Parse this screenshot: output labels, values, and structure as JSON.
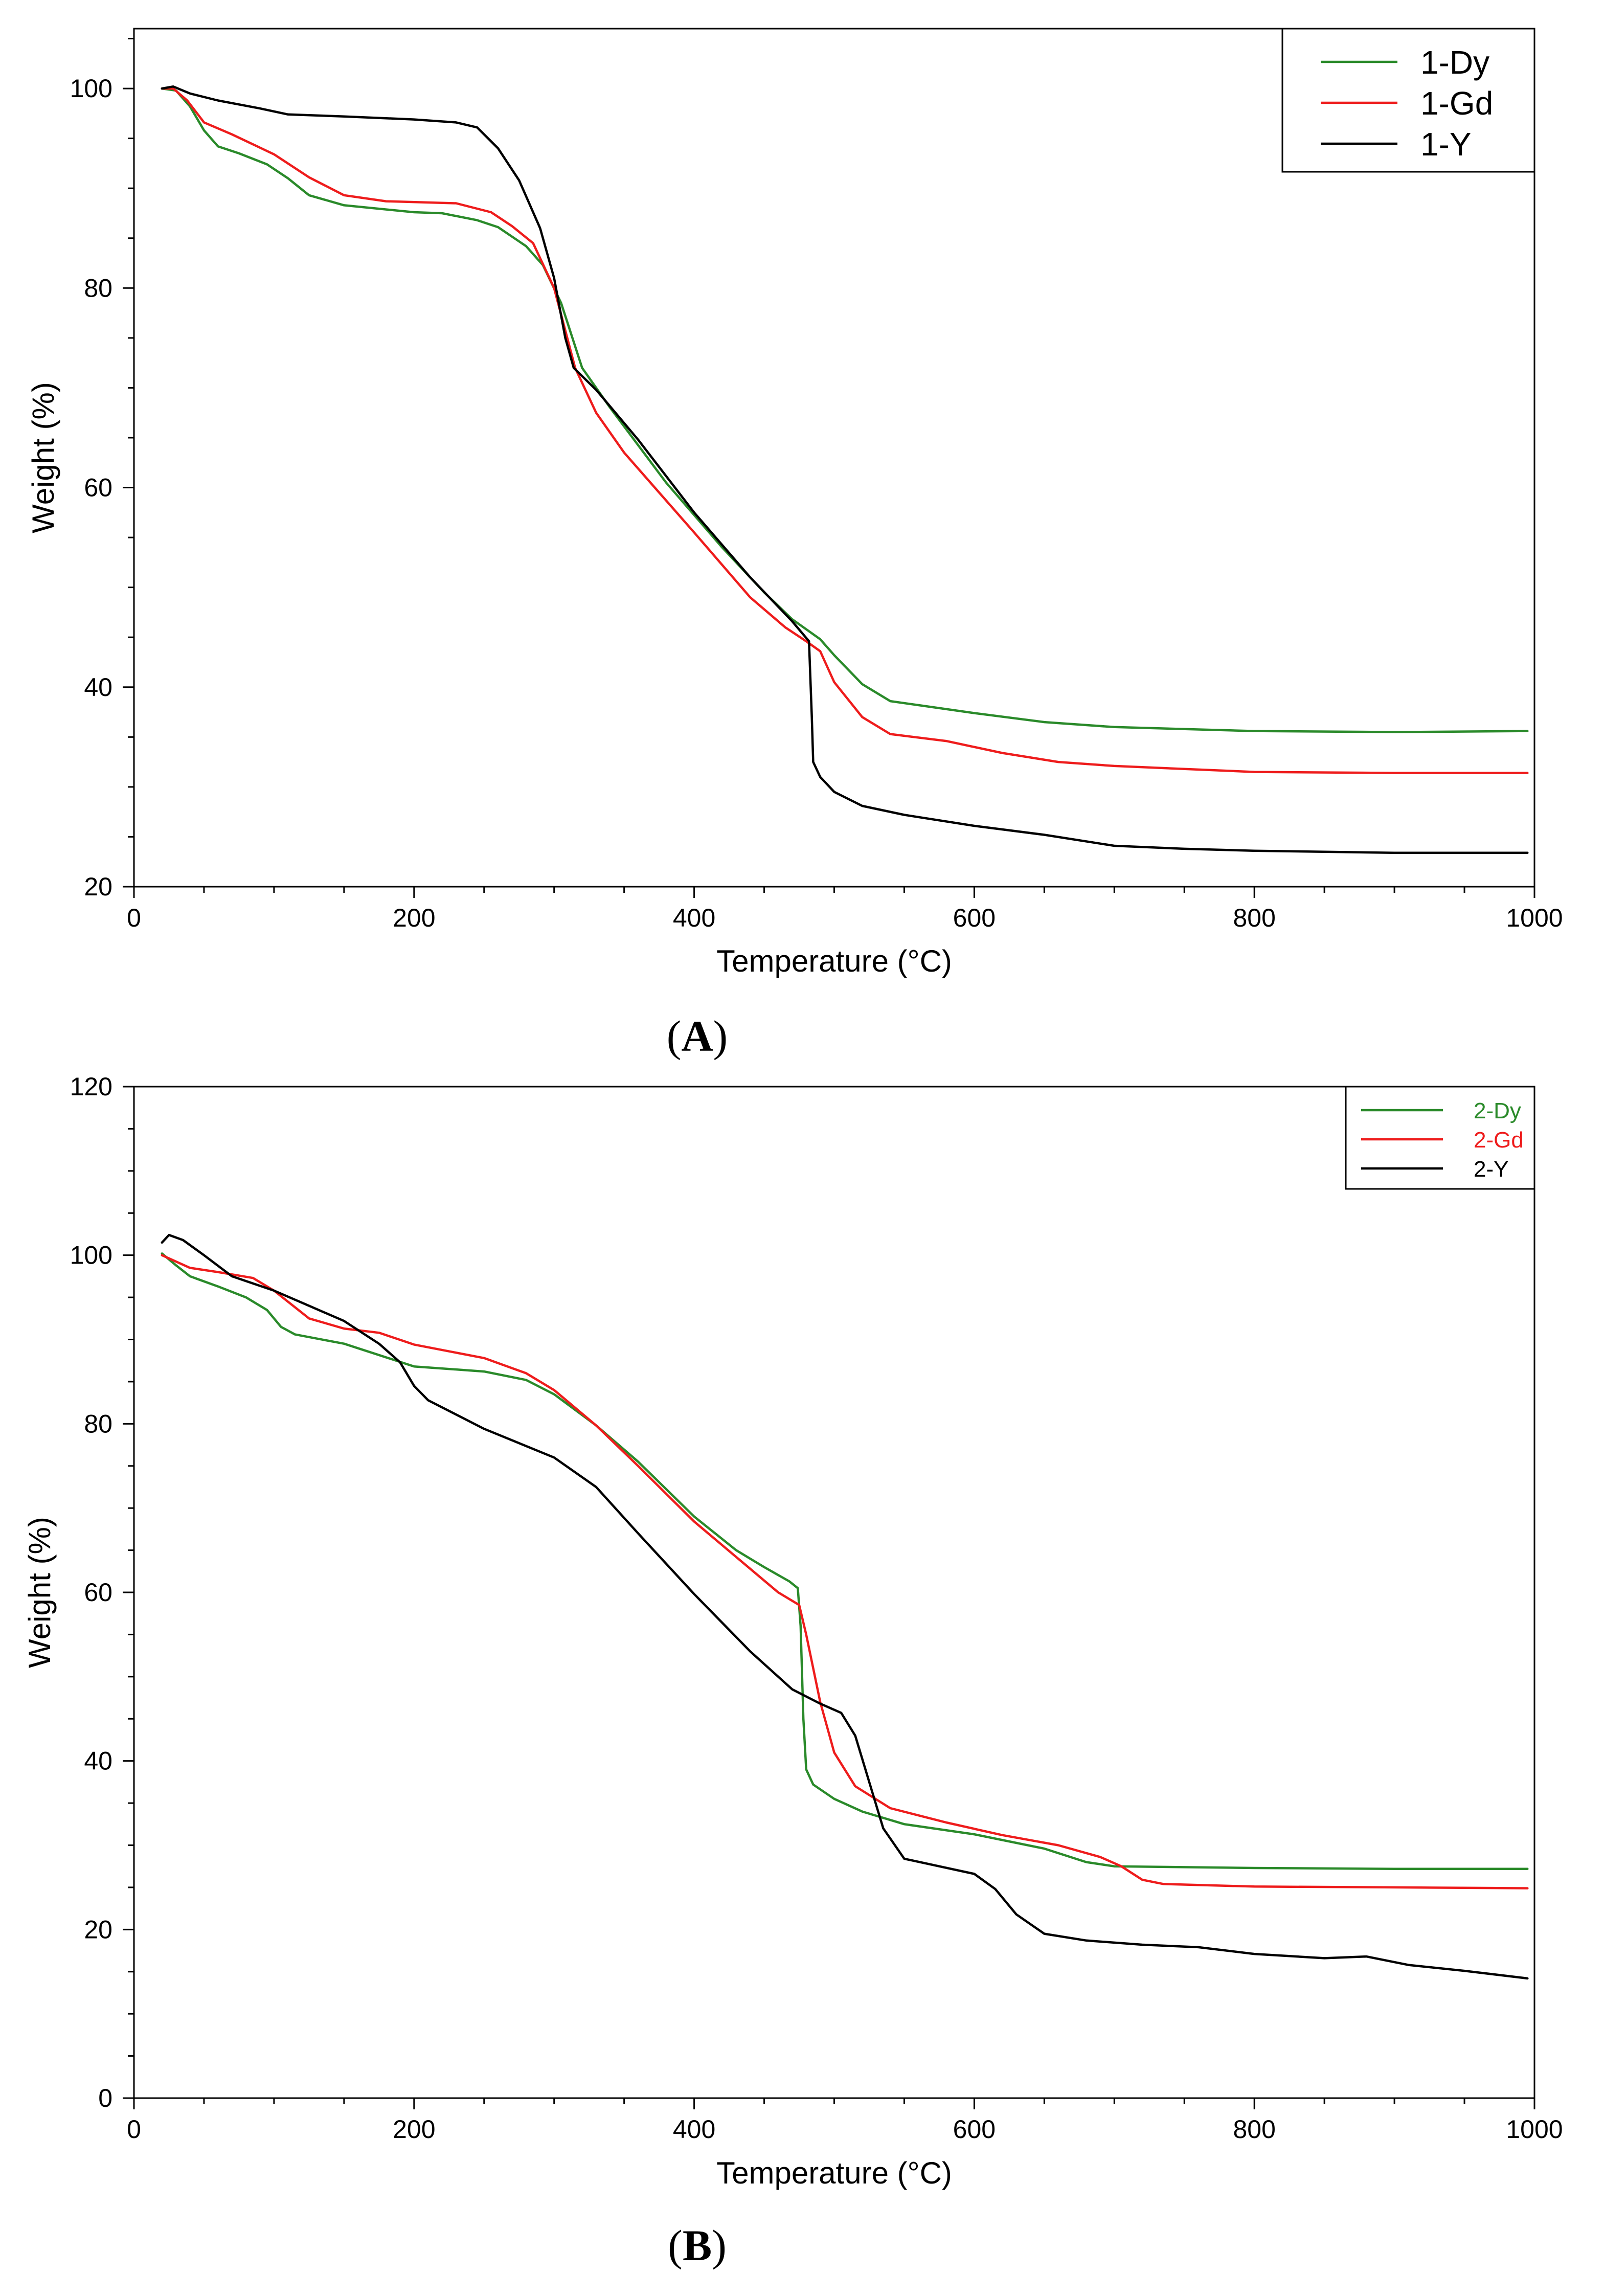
{
  "chart_data": [
    {
      "type": "line",
      "panel_label": "(A)",
      "panel_label_parts": {
        "open": "(",
        "letter": "A",
        "close": ")"
      },
      "xlabel": "Temperature (°C)",
      "ylabel": "Weight (%)",
      "xlim": [
        0,
        1000
      ],
      "ylim": [
        20,
        106
      ],
      "xticks": [
        0,
        200,
        400,
        600,
        800,
        1000
      ],
      "yticks": [
        20,
        40,
        60,
        80,
        100
      ],
      "x_minor_step": 50,
      "y_minor_step": 5,
      "legend": {
        "position": "top-right",
        "style": "large"
      },
      "series": [
        {
          "name": "1-Dy",
          "color": "#2a8a2a",
          "points": [
            [
              20,
              100
            ],
            [
              30,
              99.8
            ],
            [
              40,
              98.2
            ],
            [
              50,
              95.8
            ],
            [
              60,
              94.2
            ],
            [
              75,
              93.5
            ],
            [
              95,
              92.4
            ],
            [
              110,
              91
            ],
            [
              125,
              89.3
            ],
            [
              150,
              88.3
            ],
            [
              200,
              87.6
            ],
            [
              220,
              87.5
            ],
            [
              245,
              86.8
            ],
            [
              260,
              86.1
            ],
            [
              280,
              84.2
            ],
            [
              292,
              82.3
            ],
            [
              305,
              78.5
            ],
            [
              320,
              72
            ],
            [
              340,
              68
            ],
            [
              380,
              60.5
            ],
            [
              420,
              54
            ],
            [
              450,
              49.5
            ],
            [
              470,
              46.8
            ],
            [
              480,
              45.8
            ],
            [
              490,
              44.8
            ],
            [
              500,
              43.2
            ],
            [
              520,
              40.3
            ],
            [
              540,
              38.6
            ],
            [
              560,
              38.2
            ],
            [
              600,
              37.4
            ],
            [
              650,
              36.5
            ],
            [
              700,
              36
            ],
            [
              800,
              35.6
            ],
            [
              900,
              35.5
            ],
            [
              995,
              35.6
            ]
          ]
        },
        {
          "name": "1-Gd",
          "color": "#ee1c1c",
          "points": [
            [
              20,
              100
            ],
            [
              28,
              100
            ],
            [
              38,
              98.8
            ],
            [
              50,
              96.6
            ],
            [
              70,
              95.4
            ],
            [
              100,
              93.4
            ],
            [
              125,
              91.1
            ],
            [
              150,
              89.3
            ],
            [
              180,
              88.7
            ],
            [
              230,
              88.5
            ],
            [
              255,
              87.6
            ],
            [
              270,
              86.2
            ],
            [
              285,
              84.5
            ],
            [
              300,
              80
            ],
            [
              315,
              72
            ],
            [
              330,
              67.5
            ],
            [
              350,
              63.5
            ],
            [
              400,
              55.5
            ],
            [
              440,
              49
            ],
            [
              465,
              46
            ],
            [
              480,
              44.6
            ],
            [
              490,
              43.6
            ],
            [
              500,
              40.5
            ],
            [
              520,
              37
            ],
            [
              540,
              35.3
            ],
            [
              580,
              34.6
            ],
            [
              620,
              33.4
            ],
            [
              660,
              32.5
            ],
            [
              700,
              32.1
            ],
            [
              800,
              31.5
            ],
            [
              900,
              31.4
            ],
            [
              995,
              31.4
            ]
          ]
        },
        {
          "name": "1-Y",
          "color": "#000000",
          "points": [
            [
              20,
              100
            ],
            [
              28,
              100.2
            ],
            [
              40,
              99.5
            ],
            [
              60,
              98.8
            ],
            [
              90,
              98
            ],
            [
              110,
              97.4
            ],
            [
              150,
              97.2
            ],
            [
              200,
              96.9
            ],
            [
              230,
              96.6
            ],
            [
              245,
              96.1
            ],
            [
              260,
              94
            ],
            [
              275,
              90.8
            ],
            [
              290,
              86
            ],
            [
              300,
              81
            ],
            [
              308,
              75
            ],
            [
              314,
              72
            ],
            [
              330,
              69.8
            ],
            [
              360,
              64.8
            ],
            [
              400,
              57.5
            ],
            [
              440,
              51
            ],
            [
              470,
              46.6
            ],
            [
              482,
              44.6
            ],
            [
              484,
              37
            ],
            [
              485,
              32.5
            ],
            [
              490,
              31
            ],
            [
              500,
              29.5
            ],
            [
              520,
              28.1
            ],
            [
              550,
              27.2
            ],
            [
              600,
              26.1
            ],
            [
              650,
              25.2
            ],
            [
              700,
              24.1
            ],
            [
              750,
              23.8
            ],
            [
              800,
              23.6
            ],
            [
              900,
              23.4
            ],
            [
              995,
              23.4
            ]
          ]
        }
      ]
    },
    {
      "type": "line",
      "panel_label": "(B)",
      "panel_label_parts": {
        "open": "(",
        "letter": "B",
        "close": ")"
      },
      "xlabel": "Temperature (°C)",
      "ylabel": "Weight (%)",
      "xlim": [
        0,
        1000
      ],
      "ylim": [
        0,
        120
      ],
      "xticks": [
        0,
        200,
        400,
        600,
        800,
        1000
      ],
      "yticks": [
        0,
        20,
        40,
        60,
        80,
        100,
        120
      ],
      "x_minor_step": 50,
      "y_minor_step": 5,
      "legend": {
        "position": "top-right",
        "style": "small"
      },
      "series": [
        {
          "name": "2-Dy",
          "color": "#2a8a2a",
          "points": [
            [
              20,
              100.2
            ],
            [
              30,
              98.8
            ],
            [
              40,
              97.5
            ],
            [
              60,
              96.3
            ],
            [
              80,
              95
            ],
            [
              95,
              93.5
            ],
            [
              105,
              91.5
            ],
            [
              115,
              90.6
            ],
            [
              150,
              89.5
            ],
            [
              200,
              86.8
            ],
            [
              250,
              86.2
            ],
            [
              280,
              85.2
            ],
            [
              300,
              83.5
            ],
            [
              330,
              79.8
            ],
            [
              360,
              75.5
            ],
            [
              400,
              69
            ],
            [
              430,
              65
            ],
            [
              450,
              63
            ],
            [
              468,
              61.3
            ],
            [
              474,
              60.5
            ],
            [
              476,
              56
            ],
            [
              478,
              45
            ],
            [
              480,
              39
            ],
            [
              485,
              37.2
            ],
            [
              500,
              35.5
            ],
            [
              520,
              34
            ],
            [
              550,
              32.5
            ],
            [
              600,
              31.3
            ],
            [
              650,
              29.6
            ],
            [
              680,
              28
            ],
            [
              700,
              27.5
            ],
            [
              800,
              27.3
            ],
            [
              900,
              27.2
            ],
            [
              995,
              27.2
            ]
          ]
        },
        {
          "name": "2-Gd",
          "color": "#ee1c1c",
          "points": [
            [
              20,
              100
            ],
            [
              40,
              98.5
            ],
            [
              60,
              98
            ],
            [
              85,
              97.3
            ],
            [
              100,
              95.8
            ],
            [
              125,
              92.5
            ],
            [
              150,
              91.3
            ],
            [
              175,
              90.8
            ],
            [
              200,
              89.4
            ],
            [
              250,
              87.8
            ],
            [
              280,
              86
            ],
            [
              300,
              84
            ],
            [
              330,
              79.8
            ],
            [
              360,
              75
            ],
            [
              400,
              68.4
            ],
            [
              430,
              64.2
            ],
            [
              460,
              60
            ],
            [
              475,
              58.5
            ],
            [
              480,
              55
            ],
            [
              490,
              47
            ],
            [
              500,
              41
            ],
            [
              515,
              37
            ],
            [
              540,
              34.4
            ],
            [
              580,
              32.7
            ],
            [
              620,
              31.2
            ],
            [
              660,
              30
            ],
            [
              690,
              28.6
            ],
            [
              705,
              27.5
            ],
            [
              720,
              25.9
            ],
            [
              735,
              25.4
            ],
            [
              800,
              25.1
            ],
            [
              900,
              25
            ],
            [
              995,
              24.9
            ]
          ]
        },
        {
          "name": "2-Y",
          "color": "#000000",
          "points": [
            [
              20,
              101.5
            ],
            [
              25,
              102.4
            ],
            [
              35,
              101.8
            ],
            [
              50,
              100
            ],
            [
              70,
              97.5
            ],
            [
              100,
              95.8
            ],
            [
              125,
              94
            ],
            [
              150,
              92.2
            ],
            [
              175,
              89.5
            ],
            [
              190,
              87.3
            ],
            [
              200,
              84.5
            ],
            [
              210,
              82.8
            ],
            [
              250,
              79.4
            ],
            [
              300,
              76
            ],
            [
              330,
              72.5
            ],
            [
              360,
              67
            ],
            [
              400,
              59.8
            ],
            [
              440,
              53
            ],
            [
              470,
              48.5
            ],
            [
              490,
              46.8
            ],
            [
              505,
              45.7
            ],
            [
              515,
              43
            ],
            [
              525,
              37.5
            ],
            [
              535,
              32
            ],
            [
              550,
              28.4
            ],
            [
              575,
              27.5
            ],
            [
              600,
              26.6
            ],
            [
              615,
              24.8
            ],
            [
              630,
              21.8
            ],
            [
              650,
              19.5
            ],
            [
              680,
              18.7
            ],
            [
              720,
              18.2
            ],
            [
              760,
              17.9
            ],
            [
              800,
              17.1
            ],
            [
              850,
              16.6
            ],
            [
              880,
              16.8
            ],
            [
              910,
              15.8
            ],
            [
              950,
              15.1
            ],
            [
              995,
              14.2
            ]
          ]
        }
      ]
    }
  ]
}
